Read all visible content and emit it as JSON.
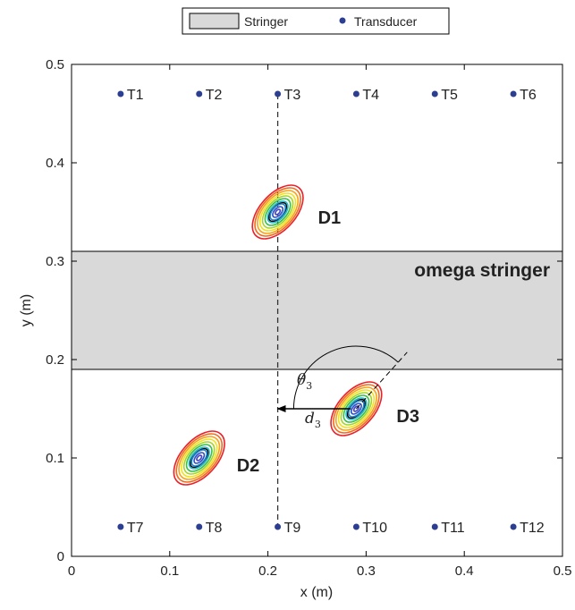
{
  "legend": {
    "entries": [
      {
        "label": "Stringer",
        "swatch_fill": "#d9d9d9"
      },
      {
        "label": "Transducer",
        "marker_color": "#2c3e8f"
      }
    ]
  },
  "chart_data": {
    "type": "scatter",
    "xlabel": "x (m)",
    "ylabel": "y (m)",
    "xlim": [
      0,
      0.5
    ],
    "ylim": [
      0,
      0.5
    ],
    "xticks": [
      {
        "value": 0,
        "label": "0"
      },
      {
        "value": 0.1,
        "label": "0.1"
      },
      {
        "value": 0.2,
        "label": "0.2"
      },
      {
        "value": 0.3,
        "label": "0.3"
      },
      {
        "value": 0.4,
        "label": "0.4"
      },
      {
        "value": 0.5,
        "label": "0.5"
      }
    ],
    "yticks": [
      {
        "value": 0,
        "label": "0"
      },
      {
        "value": 0.1,
        "label": "0.1"
      },
      {
        "value": 0.2,
        "label": "0.2"
      },
      {
        "value": 0.3,
        "label": "0.3"
      },
      {
        "value": 0.4,
        "label": "0.4"
      },
      {
        "value": 0.5,
        "label": "0.5"
      }
    ],
    "stringer": {
      "label": "omega stringer",
      "y_min": 0.19,
      "y_max": 0.31,
      "fill": "#d9d9d9"
    },
    "transducers": [
      {
        "label": "T1",
        "x": 0.05,
        "y": 0.47
      },
      {
        "label": "T2",
        "x": 0.13,
        "y": 0.47
      },
      {
        "label": "T3",
        "x": 0.21,
        "y": 0.47
      },
      {
        "label": "T4",
        "x": 0.29,
        "y": 0.47
      },
      {
        "label": "T5",
        "x": 0.37,
        "y": 0.47
      },
      {
        "label": "T6",
        "x": 0.45,
        "y": 0.47
      },
      {
        "label": "T7",
        "x": 0.05,
        "y": 0.03
      },
      {
        "label": "T8",
        "x": 0.13,
        "y": 0.03
      },
      {
        "label": "T9",
        "x": 0.21,
        "y": 0.03
      },
      {
        "label": "T10",
        "x": 0.29,
        "y": 0.03
      },
      {
        "label": "T11",
        "x": 0.37,
        "y": 0.03
      },
      {
        "label": "T12",
        "x": 0.45,
        "y": 0.03
      }
    ],
    "transducer_color": "#2c3e8f",
    "damages": [
      {
        "label": "D1",
        "x": 0.21,
        "y": 0.35
      },
      {
        "label": "D2",
        "x": 0.13,
        "y": 0.1
      },
      {
        "label": "D3",
        "x": 0.29,
        "y": 0.15
      }
    ],
    "contour_colors": [
      "#e8212b",
      "#f26b1d",
      "#f7a21b",
      "#f2e21b",
      "#a5d52a",
      "#3bbf4a",
      "#1fb8c8",
      "#1f86d6",
      "#2c50c4",
      "#6a3fb8"
    ],
    "path_line": {
      "x": 0.21,
      "y_from": 0.03,
      "y_to": 0.47
    },
    "annotation": {
      "distance_label": "d",
      "distance_subscript": "3",
      "angle_label": "θ",
      "angle_subscript": "3",
      "from": {
        "x": 0.29,
        "y": 0.15
      },
      "to": {
        "x": 0.21,
        "y": 0.15
      }
    }
  }
}
